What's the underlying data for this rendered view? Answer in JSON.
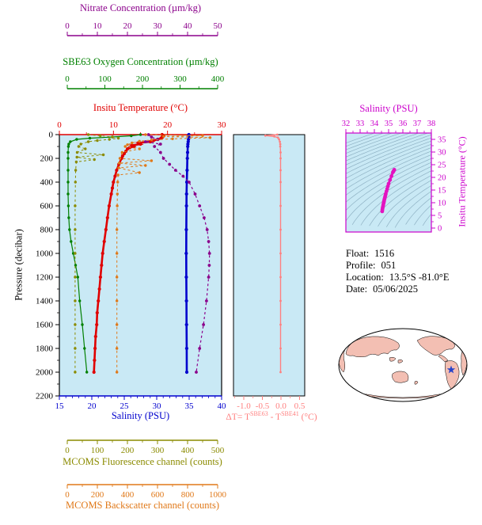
{
  "colors": {
    "plot_bg": "#c9e9f5",
    "temperature": "#e00000",
    "salinity": "#0000cd",
    "nitrate": "#8b008b",
    "oxygen": "#008000",
    "fluorescence": "#8b8b00",
    "backscatter": "#e07818",
    "delta_t": "#ff8080",
    "ts_data": "#e313c0",
    "ts_axis": "#cc00cc"
  },
  "info_panel": {
    "float_label": "Float:",
    "float_value": "1516",
    "profile_label": "Profile:",
    "profile_value": "051",
    "location_label": "Location:",
    "location_value": "13.5°S -81.0°E",
    "date_label": "Date:",
    "date_value": "05/06/2025"
  },
  "chart_data": [
    {
      "type": "line",
      "y_axis": {
        "label": "Pressure (decibar)",
        "lim": [
          0,
          2200
        ],
        "ticks": [
          0,
          200,
          400,
          600,
          800,
          1000,
          1200,
          1400,
          1600,
          1800,
          2000,
          2200
        ]
      },
      "x_axes": [
        {
          "id": "temperature",
          "label": "Insitu Temperature (°C)",
          "color": "#e00000",
          "lim": [
            0,
            30
          ],
          "ticks": [
            0,
            10,
            20,
            30
          ]
        },
        {
          "id": "salinity",
          "label": "Salinity (PSU)",
          "color": "#0000cd",
          "lim": [
            15,
            40
          ],
          "ticks": [
            15,
            20,
            25,
            30,
            35,
            40
          ]
        },
        {
          "id": "nitrate",
          "label": "Nitrate Concentration (µm/kg)",
          "color": "#8b008b",
          "lim": [
            0,
            50
          ],
          "ticks": [
            0,
            10,
            20,
            30,
            40,
            50
          ]
        },
        {
          "id": "oxygen",
          "label": "SBE63 Oxygen Concentration (µm/kg)",
          "color": "#008000",
          "lim": [
            0,
            400
          ],
          "ticks": [
            0,
            100,
            200,
            300,
            400
          ]
        },
        {
          "id": "fluorescence",
          "label": "MCOMS Fluorescence channel (counts)",
          "color": "#8b8b00",
          "lim": [
            0,
            500
          ],
          "ticks": [
            0,
            100,
            200,
            300,
            400,
            500
          ]
        },
        {
          "id": "backscatter",
          "label": "MCOMS Backscatter channel (counts)",
          "color": "#e07818",
          "lim": [
            0,
            1000
          ],
          "ticks": [
            0,
            200,
            400,
            600,
            800,
            1000
          ]
        }
      ],
      "series": [
        {
          "name": "Insitu Temperature",
          "axis": "temperature",
          "dashed": false,
          "width": 2.6,
          "marker": 2.1,
          "pressure": [
            0,
            10,
            20,
            30,
            40,
            50,
            60,
            70,
            80,
            90,
            100,
            110,
            120,
            140,
            160,
            180,
            200,
            250,
            300,
            350,
            400,
            450,
            500,
            600,
            700,
            800,
            900,
            1000,
            1100,
            1200,
            1300,
            1400,
            1500,
            1600,
            1700,
            1800,
            1900,
            2000
          ],
          "values": [
            19.0,
            19.3,
            19.1,
            18.8,
            18.2,
            17.4,
            16.8,
            14.6,
            15.0,
            13.4,
            13.8,
            13.0,
            12.6,
            12.3,
            12.0,
            11.7,
            11.5,
            11.0,
            10.6,
            10.3,
            10.0,
            9.8,
            9.6,
            9.2,
            8.9,
            8.6,
            8.3,
            8.0,
            7.8,
            7.6,
            7.4,
            7.2,
            7.0,
            6.9,
            6.7,
            6.6,
            6.5,
            6.4
          ]
        },
        {
          "name": "Salinity",
          "axis": "salinity",
          "dashed": false,
          "width": 2.6,
          "marker": 2.1,
          "pressure": [
            0,
            20,
            40,
            60,
            80,
            100,
            150,
            200,
            300,
            400,
            500,
            600,
            800,
            1000,
            1200,
            1400,
            1600,
            1800,
            2000
          ],
          "values": [
            34.95,
            34.95,
            34.9,
            34.85,
            34.8,
            34.78,
            34.75,
            34.72,
            34.68,
            34.64,
            34.6,
            34.58,
            34.56,
            34.55,
            34.56,
            34.58,
            34.6,
            34.62,
            34.64
          ]
        },
        {
          "name": "Nitrate",
          "axis": "nitrate",
          "dashed": true,
          "width": 1.2,
          "marker": 1.9,
          "pressure": [
            0,
            20,
            40,
            60,
            80,
            100,
            150,
            200,
            250,
            300,
            350,
            400,
            500,
            600,
            700,
            800,
            900,
            1000,
            1100,
            1200,
            1400,
            1600,
            1800,
            2000
          ],
          "values": [
            27,
            28,
            30,
            26,
            31,
            29,
            31,
            32,
            34,
            36,
            38.5,
            40.5,
            42.5,
            44,
            45.5,
            46.5,
            47,
            47.3,
            47.2,
            47,
            46.3,
            45.3,
            44,
            42.9
          ]
        },
        {
          "name": "SBE63 Oxygen",
          "axis": "oxygen",
          "dashed": false,
          "width": 1.2,
          "marker": 1.7,
          "pressure": [
            0,
            10,
            20,
            30,
            40,
            60,
            80,
            100,
            150,
            200,
            300,
            400,
            500,
            600,
            700,
            800,
            900,
            1000,
            1100,
            1200,
            1400,
            1600,
            1800,
            2000
          ],
          "values": [
            195,
            170,
            120,
            60,
            25,
            8,
            4,
            3,
            2,
            2,
            2,
            2,
            2,
            3,
            4,
            6,
            10,
            16,
            22,
            28,
            33,
            40,
            46,
            52
          ]
        },
        {
          "name": "MCOMS Fluorescence",
          "axis": "fluorescence",
          "dashed": true,
          "width": 1,
          "marker": 1.7,
          "pressure": [
            0,
            10,
            20,
            30,
            40,
            50,
            60,
            80,
            100,
            120,
            150,
            170,
            190,
            210,
            230,
            300,
            400,
            600,
            800,
            1000,
            1200,
            1400,
            1600,
            1800,
            2000
          ],
          "values": [
            70,
            110,
            150,
            170,
            140,
            100,
            70,
            45,
            38,
            60,
            33,
            120,
            32,
            90,
            30,
            28,
            27,
            26,
            26,
            26,
            26,
            26,
            26,
            26,
            26
          ]
        },
        {
          "name": "MCOMS Backscatter",
          "axis": "backscatter",
          "dashed": true,
          "width": 1,
          "marker": 1.7,
          "pressure": [
            0,
            8,
            15,
            25,
            35,
            45,
            55,
            70,
            85,
            100,
            120,
            150,
            200,
            220,
            240,
            260,
            280,
            320,
            340,
            400,
            500,
            600,
            800,
            1000,
            1200,
            1400,
            1600,
            1800,
            2000
          ],
          "values": [
            520,
            900,
            640,
            950,
            700,
            560,
            480,
            430,
            400,
            385,
            480,
            365,
            350,
            560,
            345,
            520,
            342,
            480,
            338,
            335,
            333,
            332,
            330,
            330,
            330,
            330,
            330,
            330,
            330
          ]
        }
      ]
    },
    {
      "type": "line",
      "x_axis": {
        "label_prefix": "ΔT= T",
        "sup1": "SBE63",
        "mid": " - T",
        "sup2": "SBE41",
        "suffix": " (°C)",
        "color": "#ff8080",
        "lim": [
          -1.28,
          0.64
        ],
        "ticks": [
          -1.0,
          -0.5,
          0.0,
          0.5
        ],
        "tick_labels": [
          "-1.0",
          "-0.5",
          "0.0",
          "0.5"
        ]
      },
      "series": [
        {
          "name": "Delta T",
          "color": "#ff8080",
          "pressure": [
            0,
            8,
            15,
            25,
            40,
            60,
            80,
            100,
            150,
            200,
            300,
            400,
            600,
            800,
            1000,
            1200,
            1400,
            1600,
            1800,
            2000
          ],
          "values": [
            -0.1,
            -0.42,
            -0.18,
            -0.08,
            -0.05,
            -0.03,
            -0.02,
            -0.02,
            -0.01,
            -0.01,
            -0.01,
            -0.01,
            -0.01,
            -0.01,
            -0.01,
            -0.01,
            -0.01,
            -0.01,
            -0.01,
            -0.01
          ]
        }
      ]
    },
    {
      "type": "scatter",
      "title": "Salinity (PSU)",
      "xlim": [
        32,
        38
      ],
      "xticks": [
        32,
        33,
        34,
        35,
        36,
        37,
        38
      ],
      "right_axis": {
        "label": "Insitu Temperature (°C)",
        "lim": [
          0,
          35
        ],
        "ticks": [
          0,
          5,
          10,
          15,
          20,
          25,
          30,
          35
        ]
      },
      "color": "#e313c0",
      "axis_color": "#cc00cc",
      "contour_color": "#8fb2c4",
      "sigma_contours": {
        "min": 18,
        "max": 30,
        "step": 0.5
      },
      "points": {
        "salinity": [
          35.4,
          35.35,
          35.3,
          35.2,
          35.1,
          35.0,
          34.95,
          34.9,
          34.85,
          34.8,
          34.78,
          34.75,
          34.72,
          34.7,
          34.68,
          34.66,
          34.64,
          34.62,
          34.6,
          34.58,
          34.56,
          34.55
        ],
        "temperature": [
          23,
          22.5,
          22,
          20.5,
          19,
          17.5,
          16.5,
          15.5,
          14.5,
          13.5,
          13,
          12.3,
          11.7,
          11.2,
          10.6,
          10.1,
          9.6,
          9.0,
          8.4,
          7.8,
          7.2,
          6.6
        ]
      }
    },
    {
      "type": "map",
      "land_color": "#f3bfb3",
      "ocean_color": "#ffffff",
      "outline_color": "#000000",
      "marker": {
        "symbol": "star",
        "color": "#2743c8"
      }
    }
  ]
}
